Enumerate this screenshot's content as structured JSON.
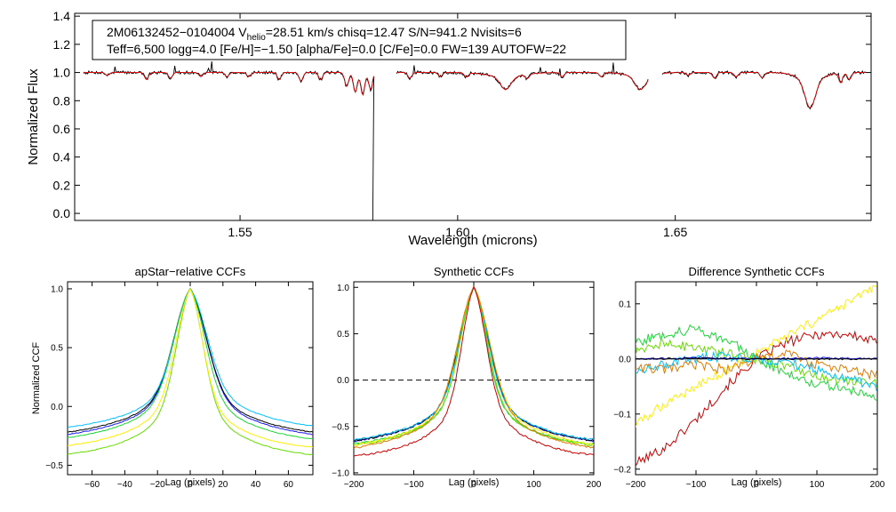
{
  "chart_data": [
    {
      "type": "line",
      "id": "spectrum",
      "title": "",
      "xlabel": "Wavelength (microns)",
      "ylabel": "Normalized Flux",
      "xlim": [
        1.512,
        1.695
      ],
      "ylim": [
        -0.05,
        1.42
      ],
      "xticks": [
        1.55,
        1.6,
        1.65
      ],
      "xtick_labels": [
        "1.55",
        "1.60",
        "1.65"
      ],
      "yticks": [
        0.0,
        0.2,
        0.4,
        0.6,
        0.8,
        1.0,
        1.2,
        1.4
      ],
      "ytick_labels": [
        "0.0",
        "0.2",
        "0.4",
        "0.6",
        "0.8",
        "1.0",
        "1.2",
        "1.4"
      ],
      "legend": {
        "line1_prefix": "2M06132452−0104004  V",
        "line1_sub": "helio",
        "line1_suffix": "=28.51 km/s  chisq=12.47  S/N=941.2  Nvisits=6",
        "line2": "Teff=6,500 logg=4.0 [Fe/H]=−1.50 [alpha/Fe]=0.0 [C/Fe]=0.0 FW=139 AUTOFW=22"
      },
      "segments": [
        [
          1.514,
          1.581
        ],
        [
          1.586,
          1.644
        ],
        [
          1.647,
          1.694
        ]
      ],
      "drop_wavelength": 1.5805,
      "series": [
        {
          "name": "observed",
          "color": "#000000"
        },
        {
          "name": "model",
          "color": "#e00000"
        }
      ],
      "absorption_lines": [
        {
          "center": 1.5195,
          "depth": 0.02
        },
        {
          "center": 1.5285,
          "depth": 0.05
        },
        {
          "center": 1.534,
          "depth": 0.04
        },
        {
          "center": 1.541,
          "depth": 0.03
        },
        {
          "center": 1.547,
          "depth": 0.03
        },
        {
          "center": 1.552,
          "depth": 0.03
        },
        {
          "center": 1.559,
          "depth": 0.05
        },
        {
          "center": 1.564,
          "depth": 0.06
        },
        {
          "center": 1.5685,
          "depth": 0.05
        },
        {
          "center": 1.5745,
          "depth": 0.1
        },
        {
          "center": 1.5765,
          "depth": 0.14
        },
        {
          "center": 1.5782,
          "depth": 0.16
        },
        {
          "center": 1.58,
          "depth": 0.12
        },
        {
          "center": 1.589,
          "depth": 0.04
        },
        {
          "center": 1.596,
          "depth": 0.03
        },
        {
          "center": 1.602,
          "depth": 0.03
        },
        {
          "center": 1.611,
          "depth": 0.09
        },
        {
          "center": 1.616,
          "depth": 0.03
        },
        {
          "center": 1.624,
          "depth": 0.03
        },
        {
          "center": 1.633,
          "depth": 0.03
        },
        {
          "center": 1.642,
          "depth": 0.09
        },
        {
          "center": 1.653,
          "depth": 0.02
        },
        {
          "center": 1.659,
          "depth": 0.04
        },
        {
          "center": 1.664,
          "depth": 0.03
        },
        {
          "center": 1.67,
          "depth": 0.04
        },
        {
          "center": 1.681,
          "depth": 0.2
        },
        {
          "center": 1.688,
          "depth": 0.07
        },
        {
          "center": 1.69,
          "depth": 0.05
        }
      ]
    },
    {
      "type": "line",
      "id": "apstar-ccf",
      "title": "apStar−relative CCFs",
      "xlabel": "Lag (pixels)",
      "ylabel": "Normalized CCF",
      "xlim": [
        -75,
        75
      ],
      "ylim": [
        -0.58,
        1.06
      ],
      "xticks": [
        -60,
        -40,
        -20,
        0,
        20,
        40,
        60
      ],
      "xtick_labels": [
        "−60",
        "−40",
        "−20",
        "0",
        "20",
        "40",
        "60"
      ],
      "yticks": [
        -0.5,
        0.0,
        0.5,
        1.0
      ],
      "ytick_labels": [
        "−0.5",
        "0.0",
        "0.5",
        "1.0"
      ],
      "series": [
        {
          "name": "c1",
          "color": "#1a1aff",
          "width": 24,
          "floor": -0.3,
          "rscale": 1.0
        },
        {
          "name": "c2",
          "color": "#000000",
          "width": 24,
          "floor": -0.28,
          "rscale": 1.0
        },
        {
          "name": "c3",
          "color": "#00bfff",
          "width": 23,
          "floor": -0.23,
          "rscale": 1.08
        },
        {
          "name": "c4",
          "color": "#1ad633",
          "width": 24,
          "floor": -0.33,
          "rscale": 0.92
        },
        {
          "name": "c5",
          "color": "#66dd00",
          "width": 20,
          "floor": -0.45,
          "rscale": 0.95
        },
        {
          "name": "c6",
          "color": "#ffee00",
          "width": 21,
          "floor": -0.38,
          "rscale": 0.88
        }
      ]
    },
    {
      "type": "line",
      "id": "synthetic-ccf",
      "title": "Synthetic CCFs",
      "xlabel": "Lag (pixels)",
      "ylabel": "",
      "xlim": [
        -200,
        200
      ],
      "ylim": [
        -1.02,
        1.06
      ],
      "xticks": [
        -200,
        -100,
        0,
        100,
        200
      ],
      "xtick_labels": [
        "−200",
        "−100",
        "0",
        "100",
        "200"
      ],
      "yticks": [
        -1.0,
        -0.5,
        0.0,
        0.5,
        1.0
      ],
      "ytick_labels": [
        "−1.0",
        "−0.5",
        "0.0",
        "0.5",
        "1.0"
      ],
      "zero_line": 0.0,
      "series": [
        {
          "name": "s1",
          "color": "#1a1aff",
          "width": 58,
          "floor": -0.72,
          "rscale": 1.0
        },
        {
          "name": "s2",
          "color": "#000000",
          "width": 58,
          "floor": -0.72,
          "rscale": 1.0
        },
        {
          "name": "s3",
          "color": "#00bfff",
          "width": 56,
          "floor": -0.7,
          "rscale": 1.0
        },
        {
          "name": "s4",
          "color": "#1ad633",
          "width": 54,
          "floor": -0.74,
          "rscale": 0.95
        },
        {
          "name": "s5",
          "color": "#66dd00",
          "width": 55,
          "floor": -0.76,
          "rscale": 0.97
        },
        {
          "name": "s6",
          "color": "#ffee00",
          "width": 62,
          "floor": -0.78,
          "rscale": 1.02
        },
        {
          "name": "s7",
          "color": "#e07a00",
          "width": 64,
          "floor": -0.82,
          "rscale": 1.0
        },
        {
          "name": "s8",
          "color": "#cc0000",
          "width": 48,
          "floor": -0.86,
          "rscale": 1.06
        }
      ]
    },
    {
      "type": "line",
      "id": "difference-ccf",
      "title": "Difference Synthetic CCFs",
      "xlabel": "Lag (pixels)",
      "ylabel": "",
      "xlim": [
        -200,
        200
      ],
      "ylim": [
        -0.21,
        0.14
      ],
      "xticks": [
        -200,
        -100,
        0,
        100,
        200
      ],
      "xtick_labels": [
        "−200",
        "−100",
        "0",
        "100",
        "200"
      ],
      "yticks": [
        -0.2,
        -0.1,
        0.0,
        0.1
      ],
      "ytick_labels": [
        "−0.2",
        "−0.1",
        "0.0",
        "0.1"
      ],
      "zero_line": 0.0,
      "series": [
        {
          "name": "d-red",
          "color": "#cc0000",
          "points": [
            [
              -200,
              -0.19
            ],
            [
              -150,
              -0.16
            ],
            [
              -100,
              -0.11
            ],
            [
              -50,
              -0.05
            ],
            [
              0,
              0.0
            ],
            [
              50,
              0.03
            ],
            [
              100,
              0.045
            ],
            [
              150,
              0.045
            ],
            [
              200,
              0.03
            ]
          ]
        },
        {
          "name": "d-yellow",
          "color": "#ffee00",
          "points": [
            [
              -200,
              -0.12
            ],
            [
              -150,
              -0.08
            ],
            [
              -100,
              -0.05
            ],
            [
              -50,
              -0.02
            ],
            [
              0,
              0.01
            ],
            [
              50,
              0.04
            ],
            [
              100,
              0.07
            ],
            [
              150,
              0.1
            ],
            [
              200,
              0.135
            ]
          ]
        },
        {
          "name": "d-green",
          "color": "#1ad633",
          "points": [
            [
              -200,
              0.03
            ],
            [
              -150,
              0.045
            ],
            [
              -100,
              0.055
            ],
            [
              -50,
              0.035
            ],
            [
              0,
              0.0
            ],
            [
              50,
              -0.025
            ],
            [
              100,
              -0.045
            ],
            [
              150,
              -0.055
            ],
            [
              200,
              -0.07
            ]
          ]
        },
        {
          "name": "d-lime",
          "color": "#66dd00",
          "points": [
            [
              -200,
              0.01
            ],
            [
              -150,
              0.03
            ],
            [
              -100,
              0.02
            ],
            [
              -50,
              0.01
            ],
            [
              0,
              0.0
            ],
            [
              50,
              -0.01
            ],
            [
              100,
              -0.03
            ],
            [
              150,
              -0.04
            ],
            [
              200,
              -0.045
            ]
          ]
        },
        {
          "name": "d-cyan",
          "color": "#00bfff",
          "points": [
            [
              -200,
              -0.02
            ],
            [
              -150,
              -0.01
            ],
            [
              -100,
              0.0
            ],
            [
              -50,
              0.005
            ],
            [
              0,
              0.0
            ],
            [
              50,
              -0.005
            ],
            [
              100,
              -0.02
            ],
            [
              150,
              -0.035
            ],
            [
              200,
              -0.05
            ]
          ]
        },
        {
          "name": "d-orange",
          "color": "#e07a00",
          "points": [
            [
              -200,
              -0.015
            ],
            [
              -150,
              -0.02
            ],
            [
              -100,
              -0.01
            ],
            [
              -50,
              -0.02
            ],
            [
              0,
              0.0
            ],
            [
              50,
              0.01
            ],
            [
              100,
              -0.01
            ],
            [
              150,
              -0.02
            ],
            [
              200,
              -0.03
            ]
          ]
        },
        {
          "name": "d-blue",
          "color": "#1a1aff",
          "points": [
            [
              -200,
              0.0
            ],
            [
              -100,
              0.002
            ],
            [
              0,
              0.0
            ],
            [
              100,
              0.002
            ],
            [
              200,
              0.0
            ]
          ]
        },
        {
          "name": "d-black",
          "color": "#000000",
          "points": [
            [
              -200,
              0.0
            ],
            [
              -100,
              0.001
            ],
            [
              0,
              0.0
            ],
            [
              100,
              0.0
            ],
            [
              200,
              0.0
            ]
          ]
        }
      ]
    }
  ]
}
